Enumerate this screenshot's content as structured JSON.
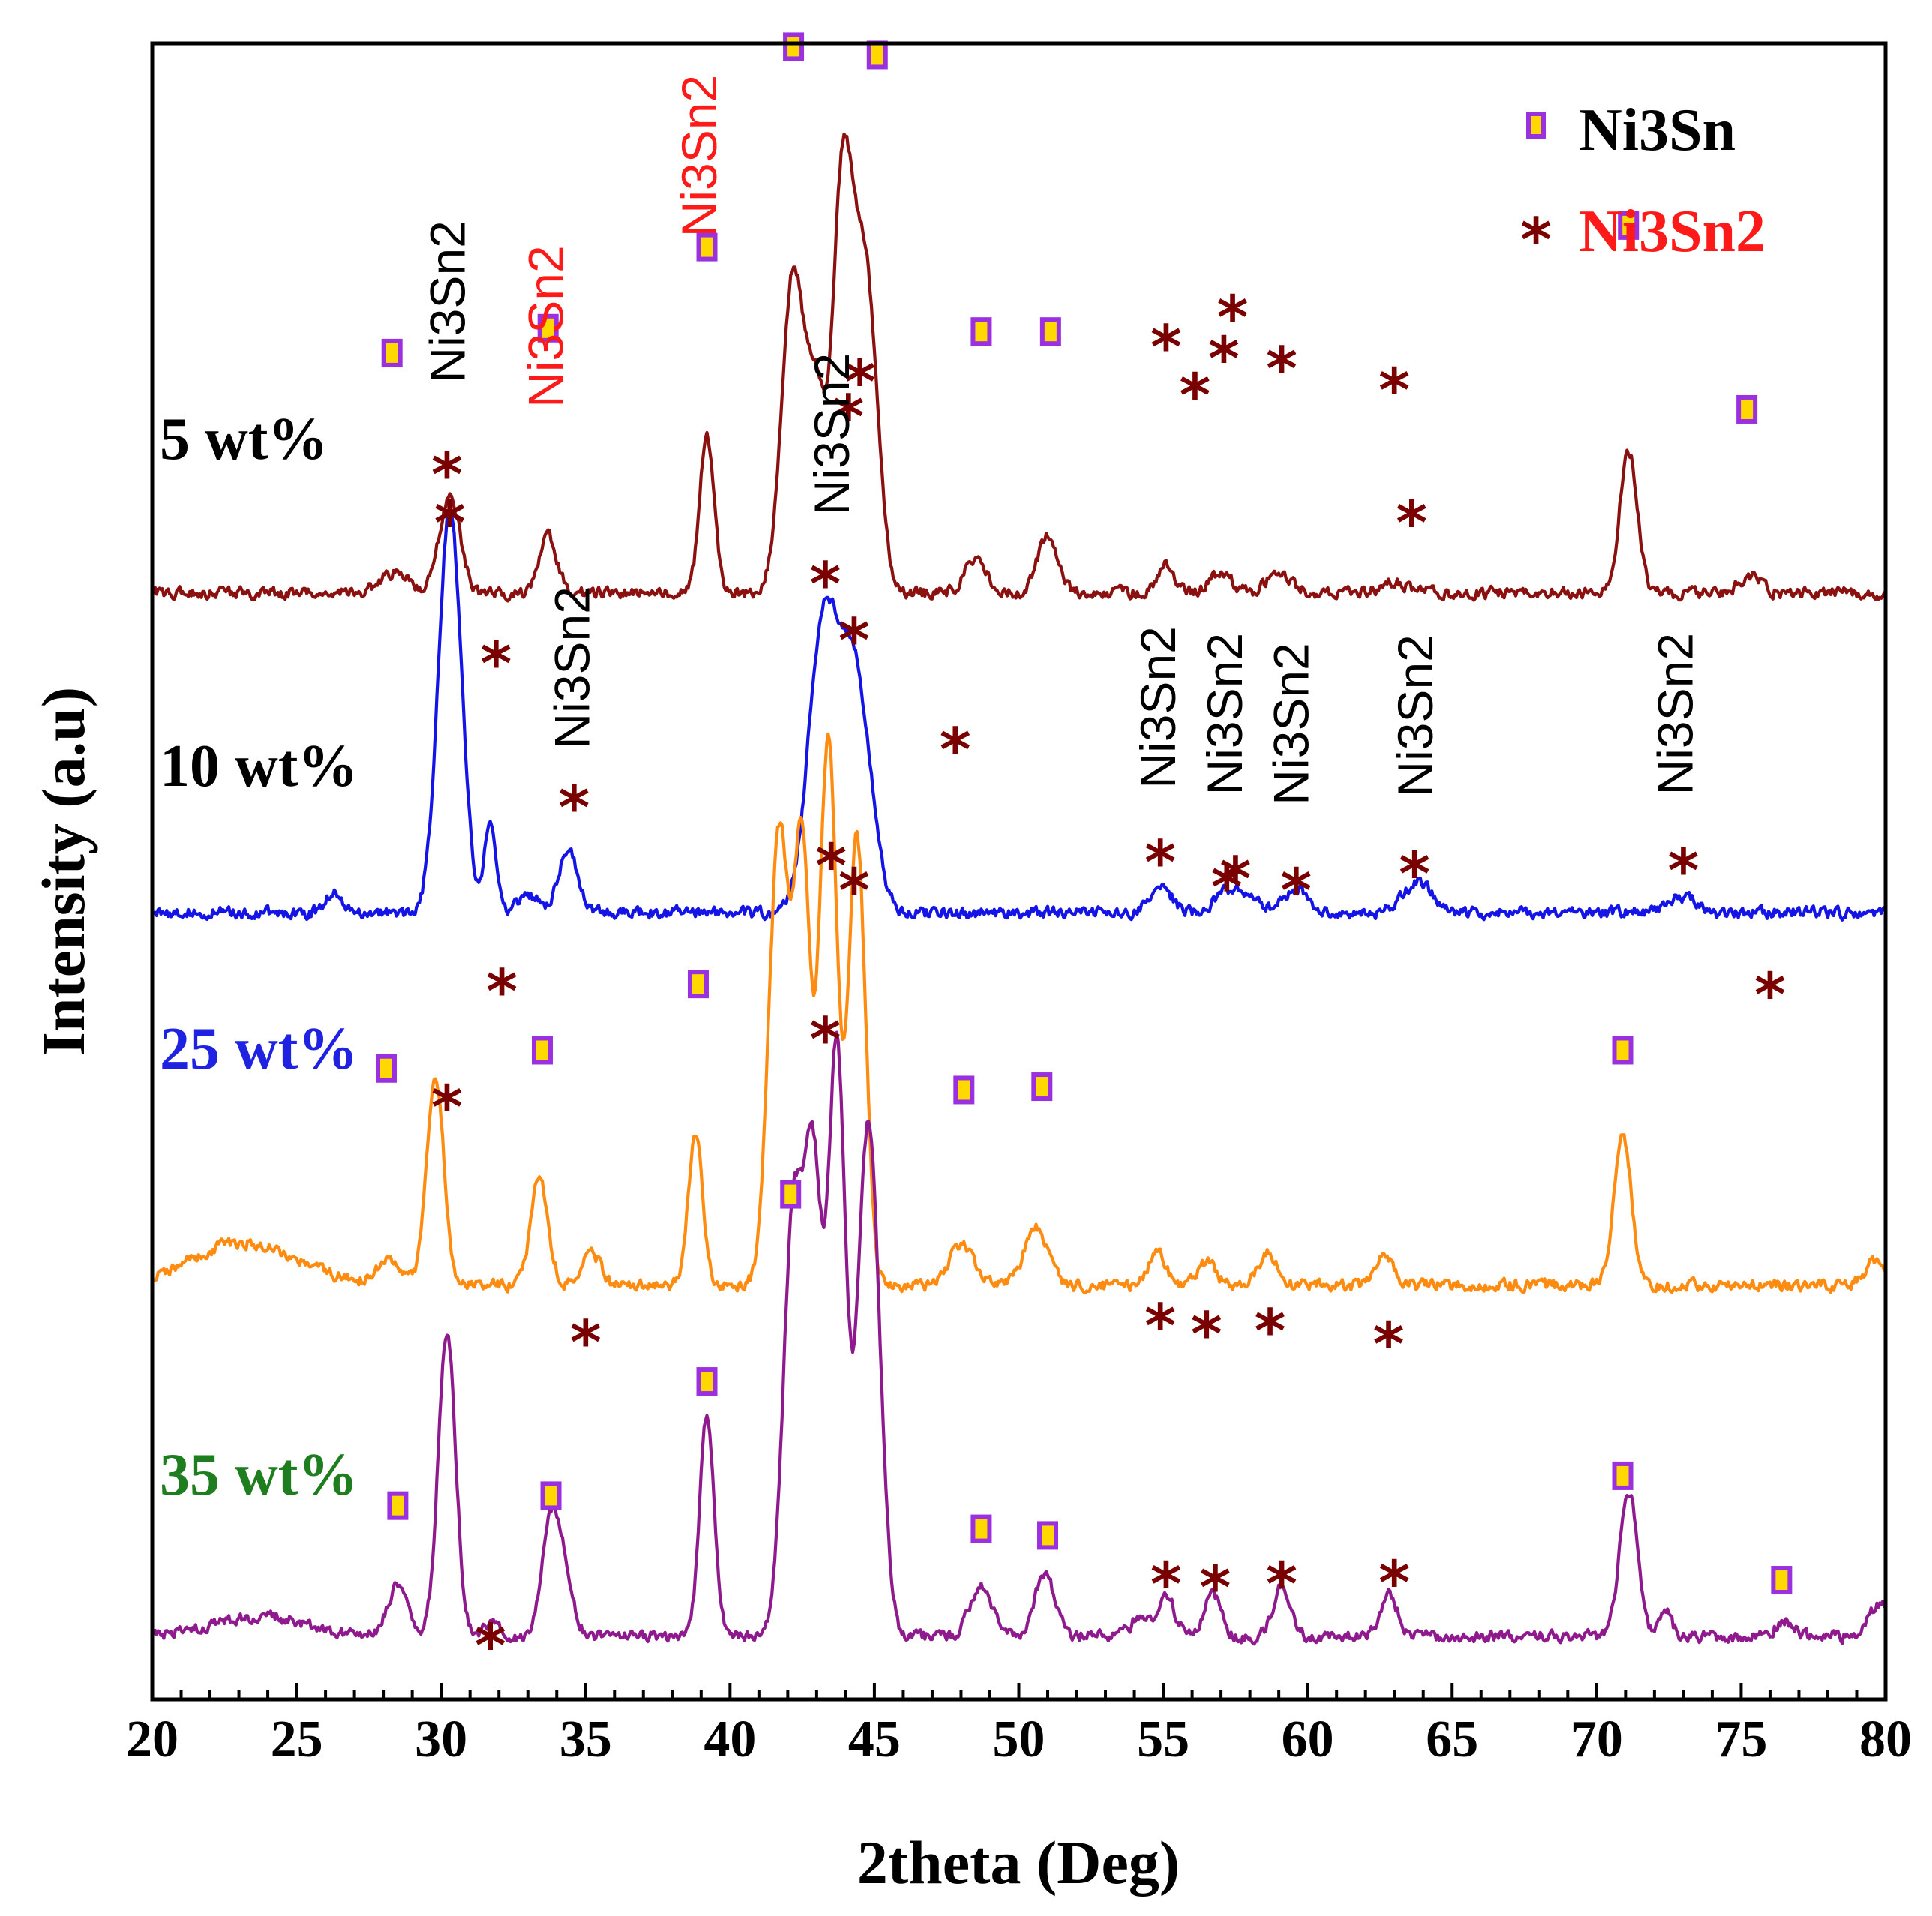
{
  "chart_data": {
    "type": "line",
    "xlabel": "2theta (Deg)",
    "ylabel": "Intensity (a.u)",
    "xlim": [
      20,
      80
    ],
    "ylim": [
      0,
      100
    ],
    "xticks": [
      20,
      25,
      30,
      35,
      40,
      45,
      50,
      55,
      60,
      65,
      70,
      75,
      80
    ],
    "legend": {
      "position": "top-right",
      "entries": [
        {
          "symbol": "square",
          "label": "Ni3Sn",
          "label_color": "#000000"
        },
        {
          "symbol": "asterisk",
          "label": "Ni3Sn2",
          "label_color": "#ff1a1a"
        }
      ]
    },
    "colors": {
      "square_fill": "#ffd800",
      "square_edge": "#9b30e0",
      "star": "#7a0000",
      "red_text": "#ff1a1a"
    },
    "series": [
      {
        "name": "5 wt%",
        "label_color": "#000000",
        "color": "#8b1010",
        "baseline": 66.8,
        "peaks": [
          [
            28.4,
            1.2,
            0.5
          ],
          [
            30.3,
            6.0,
            0.35
          ],
          [
            33.7,
            3.5,
            0.3
          ],
          [
            39.2,
            9.6,
            0.25
          ],
          [
            42.2,
            19.5,
            0.4
          ],
          [
            43.0,
            10.0,
            0.3
          ],
          [
            43.9,
            24.5,
            0.35
          ],
          [
            44.7,
            19.0,
            0.4
          ],
          [
            48.5,
            2.0,
            0.4
          ],
          [
            51.0,
            3.5,
            0.35
          ],
          [
            55.1,
            1.8,
            0.3
          ],
          [
            57.0,
            1.2,
            0.4
          ],
          [
            59.0,
            1.3,
            0.4
          ],
          [
            63.0,
            0.6,
            0.5
          ],
          [
            71.1,
            8.6,
            0.3
          ],
          [
            75.3,
            1.0,
            0.4
          ]
        ]
      },
      {
        "name": "10 wt%",
        "label_color": "#000000",
        "color": "#1414e6",
        "baseline": 47.5,
        "peaks": [
          [
            26.3,
            1.3,
            0.3
          ],
          [
            30.3,
            24.5,
            0.4
          ],
          [
            31.7,
            5.8,
            0.2
          ],
          [
            33.0,
            1.0,
            0.4
          ],
          [
            34.4,
            3.6,
            0.35
          ],
          [
            43.2,
            16.5,
            0.5
          ],
          [
            44.3,
            14.5,
            0.55
          ],
          [
            54.9,
            1.6,
            0.4
          ],
          [
            57.5,
            1.6,
            0.6
          ],
          [
            59.6,
            1.4,
            0.4
          ],
          [
            63.8,
            1.8,
            0.5
          ],
          [
            73.0,
            1.0,
            0.4
          ]
        ]
      },
      {
        "name": "25 wt%",
        "label_color": "#1f22e0",
        "color": "#ff8c10",
        "baseline": 25.0,
        "peaks": [
          [
            23.2,
            2.6,
            1.8
          ],
          [
            28.2,
            1.5,
            0.4
          ],
          [
            29.8,
            12.5,
            0.3
          ],
          [
            33.4,
            6.5,
            0.3
          ],
          [
            35.2,
            2.0,
            0.3
          ],
          [
            38.8,
            9.0,
            0.25
          ],
          [
            41.7,
            27.5,
            0.35
          ],
          [
            42.5,
            25.8,
            0.28
          ],
          [
            43.4,
            33.0,
            0.3
          ],
          [
            44.4,
            27.0,
            0.3
          ],
          [
            48.0,
            2.5,
            0.4
          ],
          [
            50.6,
            3.5,
            0.4
          ],
          [
            54.8,
            2.0,
            0.3
          ],
          [
            56.5,
            1.5,
            0.3
          ],
          [
            58.6,
            2.0,
            0.3
          ],
          [
            62.6,
            2.0,
            0.3
          ],
          [
            70.9,
            9.0,
            0.3
          ],
          [
            79.7,
            1.5,
            0.4
          ]
        ]
      },
      {
        "name": "35 wt%",
        "label_color": "#1e7d1e",
        "color": "#8e1a8e",
        "baseline": 3.8,
        "peaks": [
          [
            23.8,
            1.2,
            1.6
          ],
          [
            28.5,
            3.0,
            0.35
          ],
          [
            30.2,
            18.5,
            0.3
          ],
          [
            31.8,
            0.8,
            0.3
          ],
          [
            33.8,
            7.0,
            0.3
          ],
          [
            34.3,
            3.0,
            0.3
          ],
          [
            39.2,
            13.5,
            0.25
          ],
          [
            42.2,
            25.5,
            0.35
          ],
          [
            42.9,
            26.0,
            0.3
          ],
          [
            43.7,
            35.0,
            0.3
          ],
          [
            44.8,
            31.0,
            0.38
          ],
          [
            48.7,
            3.0,
            0.4
          ],
          [
            50.9,
            3.8,
            0.35
          ],
          [
            54.2,
            1.2,
            0.3
          ],
          [
            55.1,
            2.5,
            0.3
          ],
          [
            56.7,
            2.5,
            0.3
          ],
          [
            59.1,
            3.0,
            0.3
          ],
          [
            62.8,
            2.5,
            0.3
          ],
          [
            71.1,
            8.8,
            0.3
          ],
          [
            72.4,
            1.5,
            0.2
          ],
          [
            76.5,
            1.0,
            0.3
          ],
          [
            79.8,
            2.0,
            0.4
          ]
        ]
      }
    ],
    "markers": [
      {
        "symbol": "star",
        "x": 30.2,
        "y": 74.4
      },
      {
        "symbol": "star",
        "x": 47.8,
        "y": 57.8
      },
      {
        "symbol": "star",
        "x": 57.2,
        "y": 49.5
      },
      {
        "symbol": "star",
        "x": 32.1,
        "y": 43.2
      },
      {
        "symbol": "star",
        "x": 43.5,
        "y": 50.8
      },
      {
        "symbol": "star",
        "x": 43.3,
        "y": 40.3
      },
      {
        "symbol": "star",
        "x": 44.1,
        "y": 77.9
      },
      {
        "symbol": "star",
        "x": 44.5,
        "y": 80.0
      },
      {
        "symbol": "star",
        "x": 63.6,
        "y": 71.5
      },
      {
        "symbol": "star",
        "x": 57.4,
        "y": 83.9
      },
      {
        "symbol": "star",
        "x": 56.1,
        "y": 79.2
      },
      {
        "symbol": "star",
        "x": 76.0,
        "y": 43.0
      },
      {
        "symbol": "star",
        "x": 44.3,
        "y": 49.3
      },
      {
        "symbol": "star",
        "x": 35.0,
        "y": 22.0
      },
      {
        "symbol": "star",
        "x": 54.9,
        "y": 23.0
      },
      {
        "symbol": "star",
        "x": 56.5,
        "y": 22.5
      },
      {
        "symbol": "star",
        "x": 58.7,
        "y": 22.7
      },
      {
        "symbol": "star",
        "x": 62.8,
        "y": 21.9
      },
      {
        "symbol": "star",
        "x": 30.2,
        "y": 36.2
      },
      {
        "symbol": "star",
        "x": 31.7,
        "y": 3.7
      },
      {
        "symbol": "star",
        "x": 55.1,
        "y": 7.4
      },
      {
        "symbol": "star",
        "x": 56.8,
        "y": 7.2
      },
      {
        "symbol": "star",
        "x": 59.1,
        "y": 7.4
      },
      {
        "symbol": "star",
        "x": 63.0,
        "y": 7.5
      },
      {
        "symbol": "star",
        "x": 54.9,
        "y": 51.0
      },
      {
        "symbol": "star",
        "x": 57.5,
        "y": 50.0
      },
      {
        "symbol": "star",
        "x": 59.6,
        "y": 49.3
      },
      {
        "symbol": "star",
        "x": 63.7,
        "y": 50.3
      },
      {
        "symbol": "star",
        "x": 73.0,
        "y": 50.5
      },
      {
        "symbol": "star",
        "x": 34.6,
        "y": 54.3
      },
      {
        "symbol": "star",
        "x": 31.9,
        "y": 63.0
      },
      {
        "symbol": "star",
        "x": 30.3,
        "y": 71.5
      },
      {
        "symbol": "star",
        "x": 43.3,
        "y": 67.8
      },
      {
        "symbol": "star",
        "x": 44.3,
        "y": 64.4
      },
      {
        "symbol": "star",
        "x": 55.1,
        "y": 82.1
      },
      {
        "symbol": "star",
        "x": 57.1,
        "y": 81.4
      },
      {
        "symbol": "star",
        "x": 59.1,
        "y": 80.8
      },
      {
        "symbol": "star",
        "x": 63.0,
        "y": 79.5
      },
      {
        "symbol": "square",
        "x": 28.3,
        "y": 81.3
      },
      {
        "symbol": "square",
        "x": 33.7,
        "y": 82.8
      },
      {
        "symbol": "square",
        "x": 39.2,
        "y": 87.7
      },
      {
        "symbol": "square",
        "x": 42.2,
        "y": 99.8
      },
      {
        "symbol": "square",
        "x": 45.1,
        "y": 99.3
      },
      {
        "symbol": "square",
        "x": 48.7,
        "y": 82.6
      },
      {
        "symbol": "square",
        "x": 51.1,
        "y": 82.6
      },
      {
        "symbol": "square",
        "x": 71.1,
        "y": 89.0
      },
      {
        "symbol": "square",
        "x": 75.2,
        "y": 77.9
      },
      {
        "symbol": "square",
        "x": 28.1,
        "y": 38.1
      },
      {
        "symbol": "square",
        "x": 33.5,
        "y": 39.2
      },
      {
        "symbol": "square",
        "x": 38.9,
        "y": 43.2
      },
      {
        "symbol": "square",
        "x": 42.1,
        "y": 30.5
      },
      {
        "symbol": "square",
        "x": 48.1,
        "y": 36.8
      },
      {
        "symbol": "square",
        "x": 50.8,
        "y": 37.0
      },
      {
        "symbol": "square",
        "x": 70.9,
        "y": 39.2
      },
      {
        "symbol": "square",
        "x": 28.5,
        "y": 11.7
      },
      {
        "symbol": "square",
        "x": 33.8,
        "y": 12.3
      },
      {
        "symbol": "square",
        "x": 39.2,
        "y": 19.2
      },
      {
        "symbol": "square",
        "x": 48.7,
        "y": 10.3
      },
      {
        "symbol": "square",
        "x": 51.0,
        "y": 9.9
      },
      {
        "symbol": "square",
        "x": 70.9,
        "y": 13.5
      },
      {
        "symbol": "square",
        "x": 76.4,
        "y": 7.2
      }
    ],
    "annotations": [
      {
        "text": "Ni3Sn2",
        "x": 30.3,
        "y": 79.5,
        "color": "#000000"
      },
      {
        "text": "Ni3Sn2",
        "x": 33.7,
        "y": 78.0,
        "color": "#ff1a1a"
      },
      {
        "text": "Ni3Sn2",
        "x": 39.0,
        "y": 88.3,
        "color": "#ff1a1a"
      },
      {
        "text": "Ni3Sn2",
        "x": 43.6,
        "y": 71.5,
        "color": "#000000"
      },
      {
        "text": "Ni3Sn2",
        "x": 34.6,
        "y": 57.4,
        "color": "#000000"
      },
      {
        "text": "Ni3Sn2",
        "x": 54.9,
        "y": 55.0,
        "color": "#000000"
      },
      {
        "text": "Ni3Sn2",
        "x": 57.2,
        "y": 54.6,
        "color": "#000000"
      },
      {
        "text": "Ni3Sn2",
        "x": 59.5,
        "y": 54.0,
        "color": "#000000"
      },
      {
        "text": "Ni3Sn2",
        "x": 63.8,
        "y": 54.5,
        "color": "#000000"
      },
      {
        "text": "Ni3Sn2",
        "x": 72.8,
        "y": 54.6,
        "color": "#000000"
      }
    ]
  }
}
